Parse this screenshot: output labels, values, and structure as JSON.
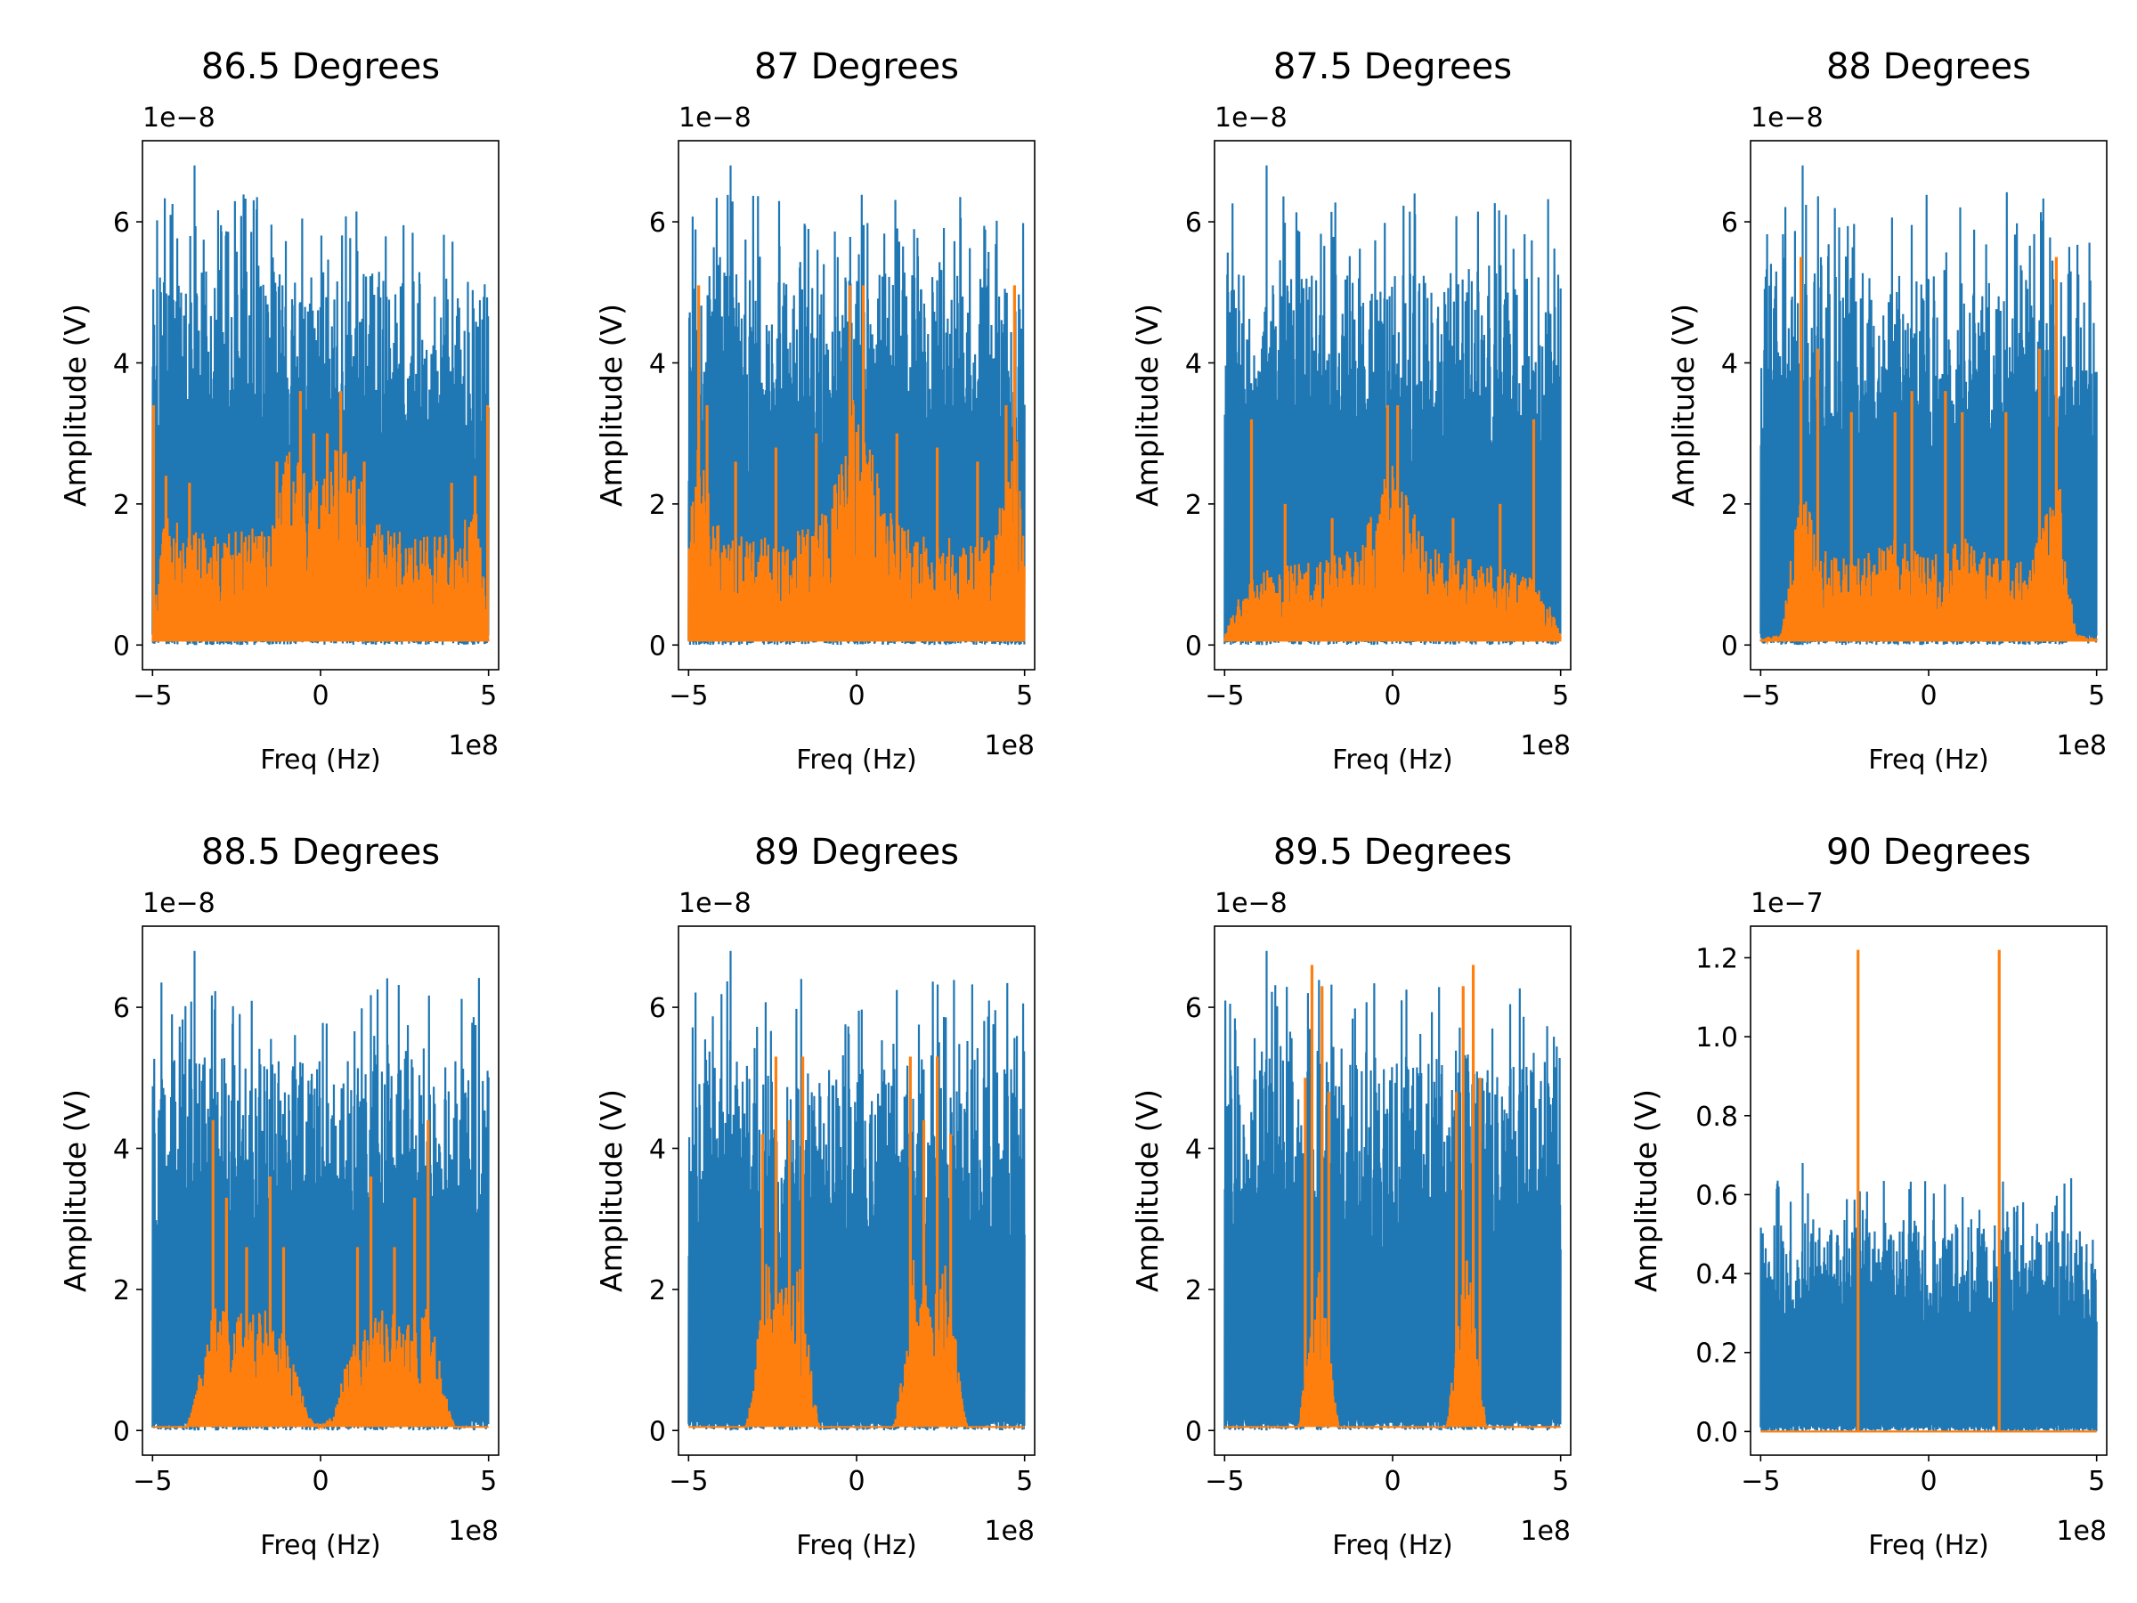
{
  "figure": {
    "background": "#ffffff",
    "series_colors": {
      "signal": "#1f77b4",
      "filtered": "#ff7f0e"
    }
  },
  "chart_data": [
    {
      "type": "line",
      "title": "86.5 Degrees",
      "xlabel": "Freq (Hz)",
      "ylabel": "Amplitude (V)",
      "x_offset_text": "1e8",
      "y_offset_text": "1e−8",
      "xlim": [
        -5.3,
        5.3
      ],
      "ylim": [
        -0.35,
        7.15
      ],
      "xticks": [
        -5,
        0,
        5
      ],
      "xtick_labels": [
        "−5",
        "0",
        "5"
      ],
      "yticks": [
        0,
        2,
        4,
        6
      ],
      "ytick_labels": [
        "0",
        "2",
        "4",
        "6"
      ],
      "grid": false,
      "series": [
        {
          "kind": "noise",
          "color": "#1f77b4",
          "x_range": [
            -5,
            5
          ],
          "band": [
            0,
            4.0
          ],
          "peak_level": 5.3,
          "max": 6.8
        },
        {
          "kind": "orange",
          "color": "#ff7f0e",
          "x_range": [
            -5,
            5
          ],
          "floor": 0.05,
          "envelope_x": [
            -5,
            -4.7,
            -4,
            -3,
            -1.5,
            -1,
            -0.5,
            0,
            0.5,
            1,
            1.5,
            3,
            4,
            4.7,
            5
          ],
          "envelope_y": [
            0.1,
            1.9,
            1.6,
            1.5,
            1.7,
            2.7,
            2.8,
            2.2,
            2.8,
            2.7,
            1.7,
            1.5,
            1.6,
            1.9,
            0.1
          ],
          "peaks": [
            [
              -4.97,
              3.4
            ],
            [
              4.97,
              3.4
            ],
            [
              -0.6,
              3.6
            ],
            [
              0.6,
              3.6
            ],
            [
              -0.2,
              3.0
            ],
            [
              0.2,
              3.0
            ],
            [
              -4.6,
              2.4
            ],
            [
              4.6,
              2.4
            ],
            [
              -3.9,
              2.3
            ],
            [
              3.9,
              2.3
            ],
            [
              -1.3,
              2.6
            ],
            [
              1.3,
              2.6
            ]
          ]
        }
      ]
    },
    {
      "type": "line",
      "title": "87 Degrees",
      "xlabel": "Freq (Hz)",
      "ylabel": "Amplitude (V)",
      "x_offset_text": "1e8",
      "y_offset_text": "1e−8",
      "xlim": [
        -5.3,
        5.3
      ],
      "ylim": [
        -0.35,
        7.15
      ],
      "xticks": [
        -5,
        0,
        5
      ],
      "xtick_labels": [
        "−5",
        "0",
        "5"
      ],
      "yticks": [
        0,
        2,
        4,
        6
      ],
      "ytick_labels": [
        "0",
        "2",
        "4",
        "6"
      ],
      "grid": false,
      "series": [
        {
          "kind": "noise",
          "color": "#1f77b4",
          "x_range": [
            -5,
            5
          ],
          "band": [
            0,
            4.0
          ],
          "peak_level": 5.3,
          "max": 6.8
        },
        {
          "kind": "orange",
          "color": "#ff7f0e",
          "x_range": [
            -5,
            5
          ],
          "floor": 0.05,
          "envelope_x": [
            -5,
            -4.8,
            -4.5,
            -4,
            -3,
            -2,
            -1,
            -0.5,
            0,
            0.5,
            1,
            2,
            3,
            4,
            4.5,
            4.8,
            5
          ],
          "envelope_y": [
            1.4,
            3.0,
            2.4,
            1.5,
            1.5,
            1.5,
            1.9,
            2.6,
            3.7,
            2.6,
            1.9,
            1.5,
            1.5,
            1.5,
            2.4,
            3.0,
            1.4
          ],
          "peaks": [
            [
              -4.7,
              5.1
            ],
            [
              4.7,
              5.1
            ],
            [
              -0.2,
              5.1
            ],
            [
              0.2,
              5.1
            ],
            [
              -4.45,
              3.4
            ],
            [
              4.45,
              3.4
            ],
            [
              -1.2,
              3.0
            ],
            [
              1.2,
              3.0
            ],
            [
              -2.4,
              2.8
            ],
            [
              2.4,
              2.8
            ],
            [
              -3.6,
              2.6
            ],
            [
              3.6,
              2.6
            ]
          ]
        }
      ]
    },
    {
      "type": "line",
      "title": "87.5 Degrees",
      "xlabel": "Freq (Hz)",
      "ylabel": "Amplitude (V)",
      "x_offset_text": "1e8",
      "y_offset_text": "1e−8",
      "xlim": [
        -5.3,
        5.3
      ],
      "ylim": [
        -0.35,
        7.15
      ],
      "xticks": [
        -5,
        0,
        5
      ],
      "xtick_labels": [
        "−5",
        "0",
        "5"
      ],
      "yticks": [
        0,
        2,
        4,
        6
      ],
      "ytick_labels": [
        "0",
        "2",
        "4",
        "6"
      ],
      "grid": false,
      "series": [
        {
          "kind": "noise",
          "color": "#1f77b4",
          "x_range": [
            -5,
            5
          ],
          "band": [
            0,
            4.0
          ],
          "peak_level": 5.3,
          "max": 6.8
        },
        {
          "kind": "orange",
          "color": "#ff7f0e",
          "x_range": [
            -5,
            5
          ],
          "floor": 0.05,
          "envelope_x": [
            -5,
            -4.6,
            -4,
            -3,
            -2,
            -1,
            -0.4,
            0,
            0.4,
            1,
            2,
            3,
            4,
            4.6,
            5
          ],
          "envelope_y": [
            0.1,
            0.6,
            1.0,
            1.1,
            1.2,
            1.4,
            2.2,
            2.5,
            2.2,
            1.4,
            1.2,
            1.1,
            1.0,
            0.6,
            0.1
          ],
          "peaks": [
            [
              -4.2,
              3.2
            ],
            [
              4.2,
              3.2
            ],
            [
              -0.15,
              3.4
            ],
            [
              0.15,
              3.4
            ],
            [
              -3.2,
              2.0
            ],
            [
              3.2,
              2.0
            ],
            [
              -1.8,
              1.8
            ],
            [
              1.8,
              1.8
            ]
          ]
        }
      ]
    },
    {
      "type": "line",
      "title": "88 Degrees",
      "xlabel": "Freq (Hz)",
      "ylabel": "Amplitude (V)",
      "x_offset_text": "1e8",
      "y_offset_text": "1e−8",
      "xlim": [
        -5.3,
        5.3
      ],
      "ylim": [
        -0.35,
        7.15
      ],
      "xticks": [
        -5,
        0,
        5
      ],
      "xtick_labels": [
        "−5",
        "0",
        "5"
      ],
      "yticks": [
        0,
        2,
        4,
        6
      ],
      "ytick_labels": [
        "0",
        "2",
        "4",
        "6"
      ],
      "grid": false,
      "series": [
        {
          "kind": "noise",
          "color": "#1f77b4",
          "x_range": [
            -5,
            5
          ],
          "band": [
            0,
            4.0
          ],
          "peak_level": 5.3,
          "max": 6.8
        },
        {
          "kind": "orange",
          "color": "#ff7f0e",
          "x_range": [
            -5,
            5
          ],
          "floor": 0.05,
          "envelope_x": [
            -5,
            -4.4,
            -4.1,
            -3.9,
            -3,
            -2,
            -1,
            0,
            1,
            2,
            3,
            3.9,
            4.1,
            4.4,
            5
          ],
          "envelope_y": [
            0.05,
            0.1,
            1.2,
            2.3,
            1.2,
            1.2,
            1.5,
            1.2,
            1.5,
            1.2,
            1.2,
            2.3,
            1.2,
            0.1,
            0.05
          ],
          "peaks": [
            [
              -3.8,
              5.5
            ],
            [
              3.8,
              5.5
            ],
            [
              -3.3,
              4.2
            ],
            [
              3.3,
              4.2
            ],
            [
              -2.3,
              3.3
            ],
            [
              2.3,
              3.3
            ],
            [
              -1.0,
              3.3
            ],
            [
              1.0,
              3.3
            ],
            [
              -0.5,
              3.6
            ],
            [
              0.5,
              3.6
            ]
          ]
        }
      ]
    },
    {
      "type": "line",
      "title": "88.5 Degrees",
      "xlabel": "Freq (Hz)",
      "ylabel": "Amplitude (V)",
      "x_offset_text": "1e8",
      "y_offset_text": "1e−8",
      "xlim": [
        -5.3,
        5.3
      ],
      "ylim": [
        -0.35,
        7.15
      ],
      "xticks": [
        -5,
        0,
        5
      ],
      "xtick_labels": [
        "−5",
        "0",
        "5"
      ],
      "yticks": [
        0,
        2,
        4,
        6
      ],
      "ytick_labels": [
        "0",
        "2",
        "4",
        "6"
      ],
      "grid": false,
      "series": [
        {
          "kind": "noise",
          "color": "#1f77b4",
          "x_range": [
            -5,
            5
          ],
          "band": [
            0,
            4.0
          ],
          "peak_level": 5.3,
          "max": 6.8
        },
        {
          "kind": "orange",
          "color": "#ff7f0e",
          "x_range": [
            -5,
            5
          ],
          "floor": 0.05,
          "envelope_x": [
            -5,
            -4,
            -3.8,
            -3.2,
            -2.5,
            -1.5,
            -0.8,
            -0.4,
            0,
            0.4,
            0.8,
            1.5,
            2.5,
            3.2,
            3.8,
            4,
            5
          ],
          "envelope_y": [
            0,
            0,
            0.3,
            1.8,
            1.6,
            1.7,
            1.0,
            0.2,
            0,
            0.2,
            1.0,
            1.7,
            1.6,
            1.8,
            0.3,
            0,
            0
          ],
          "peaks": [
            [
              -3.2,
              4.4
            ],
            [
              3.2,
              4.4
            ],
            [
              -2.8,
              3.3
            ],
            [
              2.8,
              3.3
            ],
            [
              -1.5,
              3.6
            ],
            [
              1.5,
              3.6
            ],
            [
              -1.1,
              2.6
            ],
            [
              1.1,
              2.6
            ],
            [
              -2.2,
              2.6
            ],
            [
              2.2,
              2.6
            ]
          ]
        }
      ]
    },
    {
      "type": "line",
      "title": "89 Degrees",
      "xlabel": "Freq (Hz)",
      "ylabel": "Amplitude (V)",
      "x_offset_text": "1e8",
      "y_offset_text": "1e−8",
      "xlim": [
        -5.3,
        5.3
      ],
      "ylim": [
        -0.35,
        7.15
      ],
      "xticks": [
        -5,
        0,
        5
      ],
      "xtick_labels": [
        "−5",
        "0",
        "5"
      ],
      "yticks": [
        0,
        2,
        4,
        6
      ],
      "ytick_labels": [
        "0",
        "2",
        "4",
        "6"
      ],
      "grid": false,
      "series": [
        {
          "kind": "noise",
          "color": "#1f77b4",
          "x_range": [
            -5,
            5
          ],
          "band": [
            0,
            4.0
          ],
          "peak_level": 5.3,
          "max": 6.8
        },
        {
          "kind": "orange",
          "color": "#ff7f0e",
          "x_range": [
            -5,
            5
          ],
          "floor": 0.05,
          "envelope_x": [
            -5,
            -3.3,
            -3.1,
            -2.7,
            -2.2,
            -1.7,
            -1.3,
            -1.1,
            1.1,
            1.3,
            1.7,
            2.2,
            2.7,
            3.1,
            3.3,
            5
          ],
          "envelope_y": [
            0,
            0,
            0.6,
            2.4,
            2.0,
            2.4,
            0.6,
            0,
            0,
            0.6,
            2.4,
            2.0,
            2.4,
            0.6,
            0,
            0
          ],
          "peaks": [
            [
              -2.4,
              5.3
            ],
            [
              2.4,
              5.3
            ],
            [
              -1.6,
              5.3
            ],
            [
              1.6,
              5.3
            ],
            [
              -2.8,
              4.2
            ],
            [
              2.8,
              4.2
            ],
            [
              -2.0,
              4.4
            ],
            [
              2.0,
              4.4
            ]
          ]
        }
      ]
    },
    {
      "type": "line",
      "title": "89.5 Degrees",
      "xlabel": "Freq (Hz)",
      "ylabel": "Amplitude (V)",
      "x_offset_text": "1e8",
      "y_offset_text": "1e−8",
      "xlim": [
        -5.3,
        5.3
      ],
      "ylim": [
        -0.35,
        7.15
      ],
      "xticks": [
        -5,
        0,
        5
      ],
      "xtick_labels": [
        "−5",
        "0",
        "5"
      ],
      "yticks": [
        0,
        2,
        4,
        6
      ],
      "ytick_labels": [
        "0",
        "2",
        "4",
        "6"
      ],
      "grid": false,
      "series": [
        {
          "kind": "noise",
          "color": "#1f77b4",
          "x_range": [
            -5,
            5
          ],
          "band": [
            0,
            4.0
          ],
          "peak_level": 5.3,
          "max": 6.8
        },
        {
          "kind": "orange",
          "color": "#ff7f0e",
          "x_range": [
            -5,
            5
          ],
          "floor": 0.05,
          "envelope_x": [
            -5,
            -2.8,
            -2.6,
            -2.2,
            -1.8,
            -1.6,
            1.6,
            1.8,
            2.2,
            2.6,
            2.8,
            5
          ],
          "envelope_y": [
            0,
            0,
            0.8,
            2.6,
            0.8,
            0,
            0,
            0.8,
            2.6,
            0.8,
            0,
            0
          ],
          "peaks": [
            [
              -2.4,
              6.6
            ],
            [
              2.4,
              6.6
            ],
            [
              -2.1,
              6.3
            ],
            [
              2.1,
              6.3
            ],
            [
              -2.6,
              5.0
            ],
            [
              2.6,
              5.0
            ],
            [
              -1.9,
              4.8
            ],
            [
              1.9,
              4.8
            ]
          ]
        }
      ]
    },
    {
      "type": "line",
      "title": "90 Degrees",
      "xlabel": "Freq (Hz)",
      "ylabel": "Amplitude (V)",
      "x_offset_text": "1e8",
      "y_offset_text": "1e−7",
      "xlim": [
        -5.3,
        5.3
      ],
      "ylim": [
        -0.06,
        1.28
      ],
      "xticks": [
        -5,
        0,
        5
      ],
      "xtick_labels": [
        "−5",
        "0",
        "5"
      ],
      "yticks": [
        0.0,
        0.2,
        0.4,
        0.6,
        0.8,
        1.0,
        1.2
      ],
      "ytick_labels": [
        "0.0",
        "0.2",
        "0.4",
        "0.6",
        "0.8",
        "1.0",
        "1.2"
      ],
      "grid": false,
      "series": [
        {
          "kind": "noise",
          "color": "#1f77b4",
          "x_range": [
            -5,
            5
          ],
          "band": [
            0,
            0.4
          ],
          "peak_level": 0.53,
          "max": 0.68
        },
        {
          "kind": "orange",
          "color": "#ff7f0e",
          "x_range": [
            -5,
            5
          ],
          "floor": 0,
          "envelope_x": [
            -5,
            5
          ],
          "envelope_y": [
            0,
            0
          ],
          "peaks": [
            [
              -2.1,
              1.22
            ],
            [
              2.1,
              1.22
            ]
          ]
        }
      ]
    }
  ]
}
